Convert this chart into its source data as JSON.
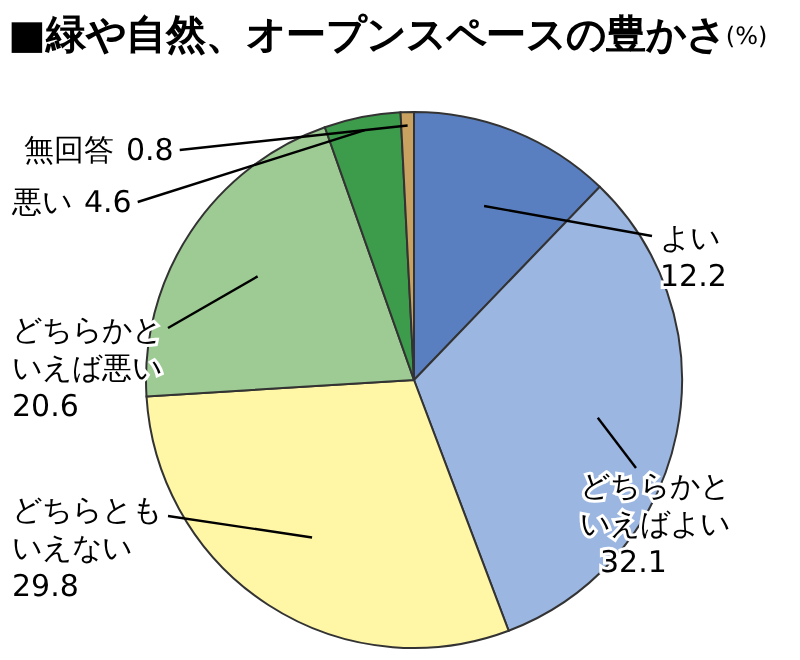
{
  "chart_data": {
    "type": "pie",
    "title": "■緑や自然、オープンスペースの豊かさ",
    "subtitle": "(%)",
    "categories": [
      "よい",
      "どちらかといえばよい",
      "どちらともいえない",
      "どちらかといえば悪い",
      "悪い",
      "無回答"
    ],
    "values": [
      12.2,
      32.1,
      29.8,
      20.6,
      4.6,
      0.8
    ],
    "colors": [
      "#5a7fc0",
      "#9bb6e0",
      "#fff6a6",
      "#9dcb93",
      "#3d9b4c",
      "#c9a262"
    ],
    "data_labels": true
  }
}
